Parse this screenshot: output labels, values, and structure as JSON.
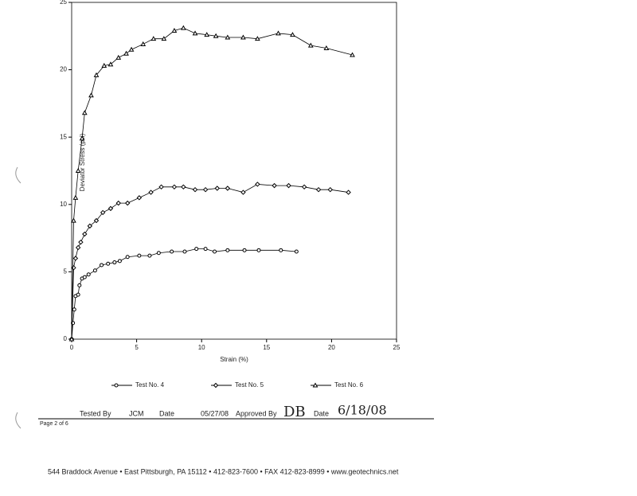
{
  "chart_data": {
    "type": "line",
    "xlabel": "Strain (%)",
    "ylabel": "Deviator Stress (psi)",
    "xlim": [
      0,
      25
    ],
    "ylim": [
      0,
      25
    ],
    "xticks": [
      0,
      5,
      10,
      15,
      20,
      25
    ],
    "yticks": [
      0,
      5,
      10,
      15,
      20,
      25
    ],
    "series": [
      {
        "name": "Test No. 4",
        "color": "#000000",
        "marker": "circle",
        "x": [
          0,
          0.1,
          0.2,
          0.3,
          0.5,
          0.6,
          0.8,
          1.0,
          1.3,
          1.8,
          2.3,
          2.8,
          3.3,
          3.7,
          4.3,
          5.2,
          6.0,
          6.7,
          7.7,
          8.7,
          9.6,
          10.3,
          11.0,
          12.0,
          13.3,
          14.4,
          16.1,
          17.3
        ],
        "values": [
          0,
          1.2,
          2.2,
          3.2,
          3.3,
          4.0,
          4.5,
          4.6,
          4.8,
          5.1,
          5.5,
          5.6,
          5.7,
          5.8,
          6.1,
          6.2,
          6.2,
          6.4,
          6.5,
          6.5,
          6.7,
          6.7,
          6.5,
          6.6,
          6.6,
          6.6,
          6.6,
          6.5
        ]
      },
      {
        "name": "Test No. 5",
        "color": "#000000",
        "marker": "diamond",
        "x": [
          0,
          0.15,
          0.3,
          0.5,
          0.7,
          1.0,
          1.4,
          1.9,
          2.4,
          3.0,
          3.6,
          4.3,
          5.2,
          6.1,
          6.9,
          7.9,
          8.6,
          9.5,
          10.3,
          11.2,
          12.0,
          13.2,
          14.3,
          15.6,
          16.7,
          17.9,
          19.0,
          19.9,
          21.3
        ],
        "values": [
          0,
          5.3,
          6.0,
          6.8,
          7.2,
          7.8,
          8.4,
          8.8,
          9.4,
          9.7,
          10.1,
          10.1,
          10.5,
          10.9,
          11.3,
          11.3,
          11.3,
          11.1,
          11.1,
          11.2,
          11.2,
          10.9,
          11.5,
          11.4,
          11.4,
          11.3,
          11.1,
          11.1,
          10.9
        ]
      },
      {
        "name": "Test No. 6",
        "color": "#000000",
        "marker": "triangle",
        "x": [
          0,
          0.15,
          0.3,
          0.5,
          0.8,
          1.0,
          1.5,
          1.9,
          2.5,
          3.0,
          3.6,
          4.2,
          4.6,
          5.5,
          6.3,
          7.1,
          7.9,
          8.6,
          9.5,
          10.4,
          11.1,
          12.0,
          13.2,
          14.3,
          15.9,
          17.0,
          18.4,
          19.6,
          21.6
        ],
        "values": [
          0,
          8.8,
          10.5,
          12.5,
          14.9,
          16.8,
          18.1,
          19.6,
          20.3,
          20.4,
          20.9,
          21.2,
          21.5,
          21.9,
          22.3,
          22.3,
          22.9,
          23.1,
          22.7,
          22.6,
          22.5,
          22.4,
          22.4,
          22.3,
          22.7,
          22.6,
          21.8,
          21.6,
          21.1
        ]
      }
    ]
  },
  "footer": {
    "tested_by_label": "Tested By",
    "tested_by": "JCM",
    "date_label": "Date",
    "date": "05/27/08",
    "approved_by_label": "Approved By",
    "approved_by": "DB",
    "date2_label": "Date",
    "date2": "6/18/08",
    "page": "Page 2 of 6",
    "address": "544 Braddock Avenue  •  East Pittsburgh, PA 15112  •  412-823-7600  •  FAX 412-823-8999  •  www.geotechnics.net"
  }
}
